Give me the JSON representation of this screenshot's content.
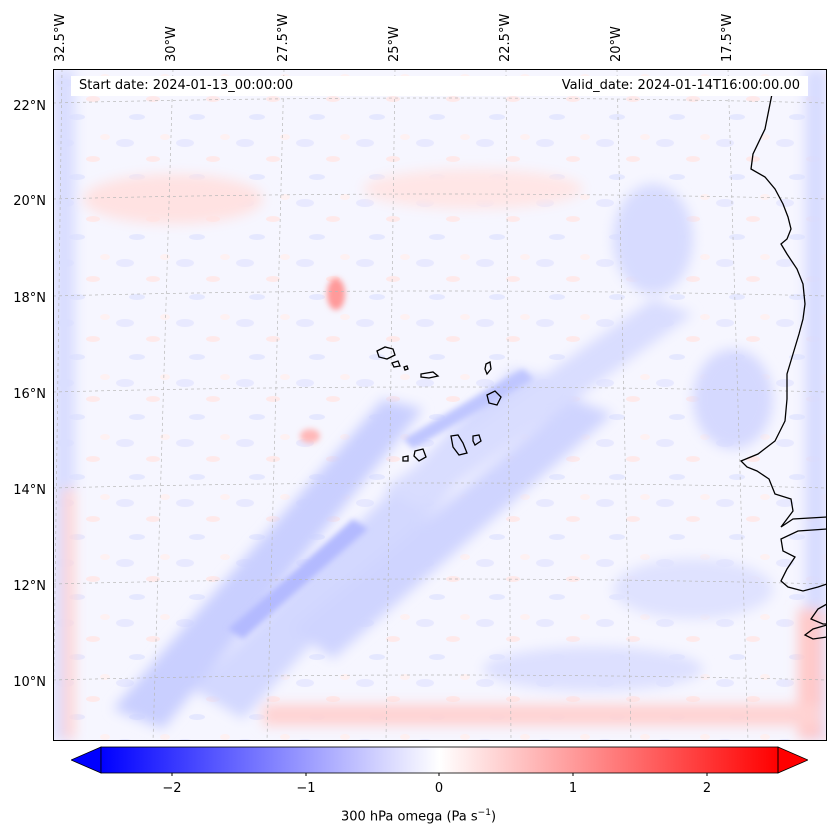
{
  "map": {
    "start_date": "Start date: 2024-01-13_00:00:00",
    "valid_date": "Valid_date: 2024-01-14T16:00:00.00",
    "lon_labels": [
      "32.5°W",
      "30°W",
      "27.5°W",
      "25°W",
      "22.5°W",
      "20°W",
      "17.5°W"
    ],
    "lat_labels": [
      "22°N",
      "20°N",
      "18°N",
      "16°N",
      "14°N",
      "12°N",
      "10°N"
    ],
    "field": "omega",
    "colormap": "bwr"
  },
  "colorbar": {
    "ticks": [
      "−2",
      "−1",
      "0",
      "1",
      "2"
    ],
    "label_main": "300 hPa omega (Pa s",
    "label_exp": "−1",
    "label_end": ")",
    "min_color": "#0000ff",
    "mid_color": "#ffffff",
    "max_color": "#ff0000"
  }
}
